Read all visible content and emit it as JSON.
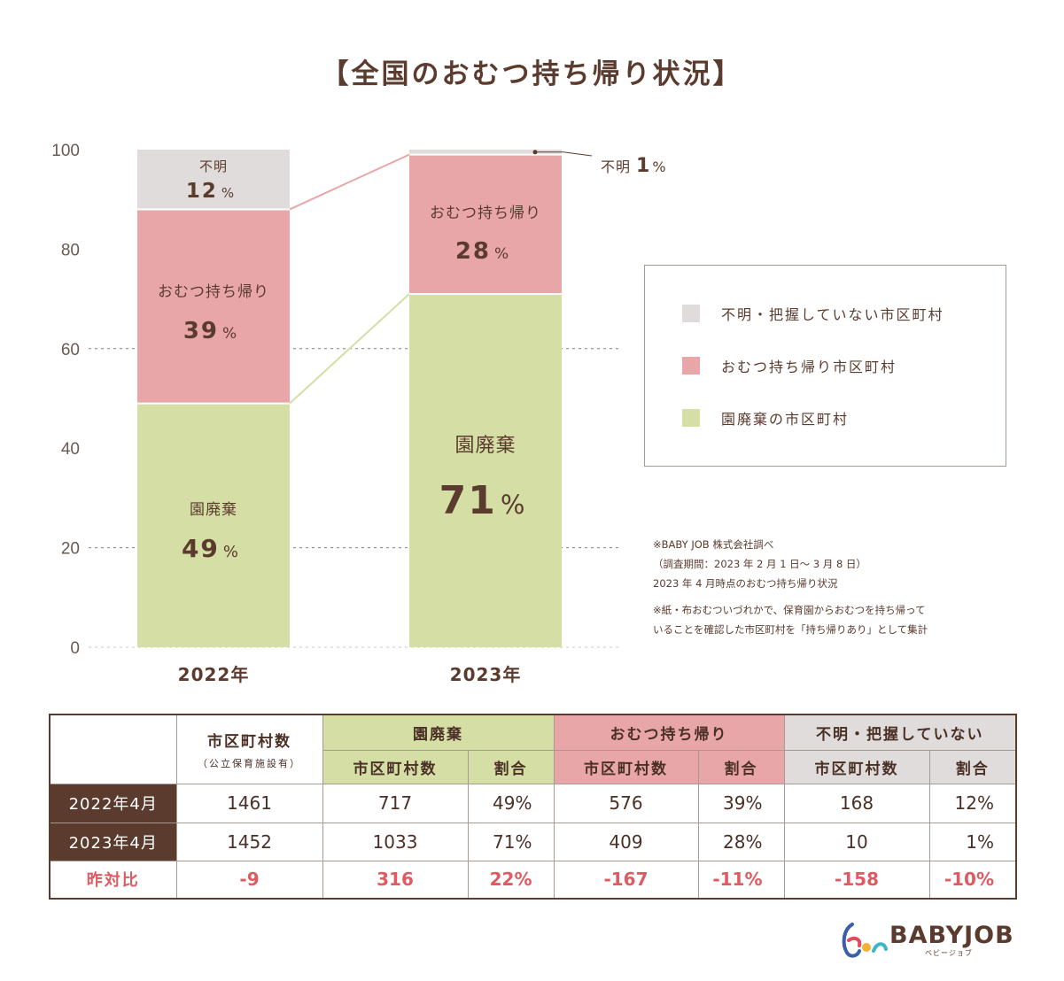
{
  "title": "【全国のおむつ持ち帰り状況】",
  "colors": {
    "green": "#d5dea5",
    "pink": "#e9a6a8",
    "gray": "#e0dcdb",
    "brown": "#5a3b2e",
    "red": "#e05a62"
  },
  "chart_data": {
    "type": "bar",
    "stacked": true,
    "categories": [
      "2022年",
      "2023年"
    ],
    "ylim": [
      0,
      100
    ],
    "yticks": [
      0,
      20,
      40,
      60,
      80,
      100
    ],
    "grid": "dashed lines at 20 and 60",
    "series": [
      {
        "name": "園廃棄",
        "label": "園廃棄",
        "values": [
          49,
          71
        ],
        "display": [
          "49",
          "71"
        ],
        "color": "#d5dea5"
      },
      {
        "name": "おむつ持ち帰り",
        "label": "おむつ持ち帰り",
        "values": [
          39,
          28
        ],
        "display": [
          "39",
          "28"
        ],
        "color": "#e9a6a8"
      },
      {
        "name": "不明",
        "label": "不明",
        "values": [
          12,
          1
        ],
        "display": [
          "12",
          "1"
        ],
        "color": "#e0dcdb"
      }
    ],
    "percent_sign": "%",
    "callout": {
      "text": "不明",
      "value": "1",
      "unit": "%"
    }
  },
  "legend": [
    {
      "label": "不明・把握していない市区町村",
      "color": "#e0dcdb"
    },
    {
      "label": "おむつ持ち帰り市区町村",
      "color": "#e9a6a8"
    },
    {
      "label": "園廃棄の市区町村",
      "color": "#d5dea5"
    }
  ],
  "notes": {
    "source": "※BABY JOB 株式会社調べ",
    "period": "（調査期間：2023 年 2 月 1 日～ 3 月 8 日）",
    "status": "2023 年 4 月時点のおむつ持ち帰り状況",
    "def_line1": "※紙・布おむついづれかで、保育園からおむつを持ち帰って",
    "def_line2": "いることを確認した市区町村を「持ち帰りあり」として集計"
  },
  "table": {
    "col_total": "市区町村数",
    "col_total_sub": "（公立保育施設有）",
    "group_green": "園廃棄",
    "group_pink": "おむつ持ち帰り",
    "group_gray": "不明・把握していない",
    "sub_count": "市区町村数",
    "sub_ratio": "割合",
    "rows": [
      {
        "label": "2022年4月",
        "total": "1461",
        "g_count": "717",
        "g_ratio": "49%",
        "p_count": "576",
        "p_ratio": "39%",
        "u_count": "168",
        "u_ratio": "12%"
      },
      {
        "label": "2023年4月",
        "total": "1452",
        "g_count": "1033",
        "g_ratio": "71%",
        "p_count": "409",
        "p_ratio": "28%",
        "u_count": "10",
        "u_ratio": "1%"
      }
    ],
    "yoy": {
      "label": "昨対比",
      "total": "-9",
      "g_count": "316",
      "g_ratio": "22%",
      "p_count": "-167",
      "p_ratio": "-11%",
      "u_count": "-158",
      "u_ratio": "-10%"
    }
  },
  "logo": {
    "text": "BABYJOB",
    "sub": "ベビージョブ"
  }
}
